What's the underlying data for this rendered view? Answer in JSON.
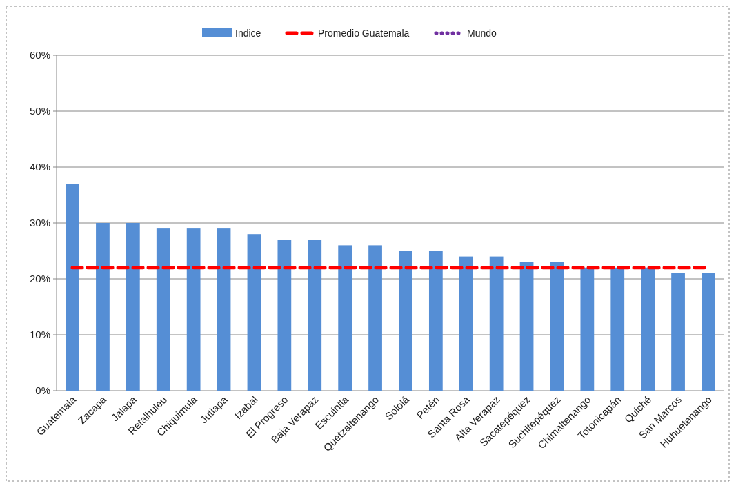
{
  "chart_data": {
    "type": "bar",
    "categories": [
      "Guatemala",
      "Zacapa",
      "Jalapa",
      "Retalhuleu",
      "Chiquimula",
      "Jutiapa",
      "Izabal",
      "El Progreso",
      "Baja Verapaz",
      "Escuintla",
      "Quetzaltenango",
      "Sololá",
      "Petén",
      "Santa Rosa",
      "Alta Verapaz",
      "Sacatepéquez",
      "Suchitepéquez",
      "Chimaltenango",
      "Totonicapán",
      "Quiché",
      "San Marcos",
      "Huhuetenango"
    ],
    "series": [
      {
        "name": "Indice",
        "color": "#558ed5",
        "values": [
          37,
          30,
          30,
          29,
          29,
          29,
          28,
          27,
          27,
          26,
          26,
          25,
          25,
          24,
          24,
          23,
          23,
          22,
          22,
          22,
          21,
          21
        ]
      },
      {
        "name": "Promedio Guatemala",
        "type": "line",
        "color": "#ff0000",
        "line_style": "dashed",
        "values": [
          22,
          22,
          22,
          22,
          22,
          22,
          22,
          22,
          22,
          22,
          22,
          22,
          22,
          22,
          22,
          22,
          22,
          22,
          22,
          22,
          22,
          22
        ]
      },
      {
        "name": "Mundo",
        "type": "line",
        "color": "#7030a0",
        "line_style": "dotted",
        "values": [
          null,
          null,
          null,
          null,
          null,
          null,
          null,
          null,
          null,
          null,
          null,
          null,
          null,
          null,
          null,
          null,
          null,
          null,
          null,
          null,
          null,
          null
        ]
      }
    ],
    "ylim": [
      0,
      60
    ],
    "yticks": [
      {
        "value": 0,
        "label": "0%"
      },
      {
        "value": 10,
        "label": "10%"
      },
      {
        "value": 20,
        "label": "20%"
      },
      {
        "value": 30,
        "label": "30%"
      },
      {
        "value": 40,
        "label": "40%"
      },
      {
        "value": 50,
        "label": "50%"
      },
      {
        "value": 60,
        "label": "60%"
      }
    ],
    "grid": "y",
    "legend": "top",
    "marker": "none"
  }
}
